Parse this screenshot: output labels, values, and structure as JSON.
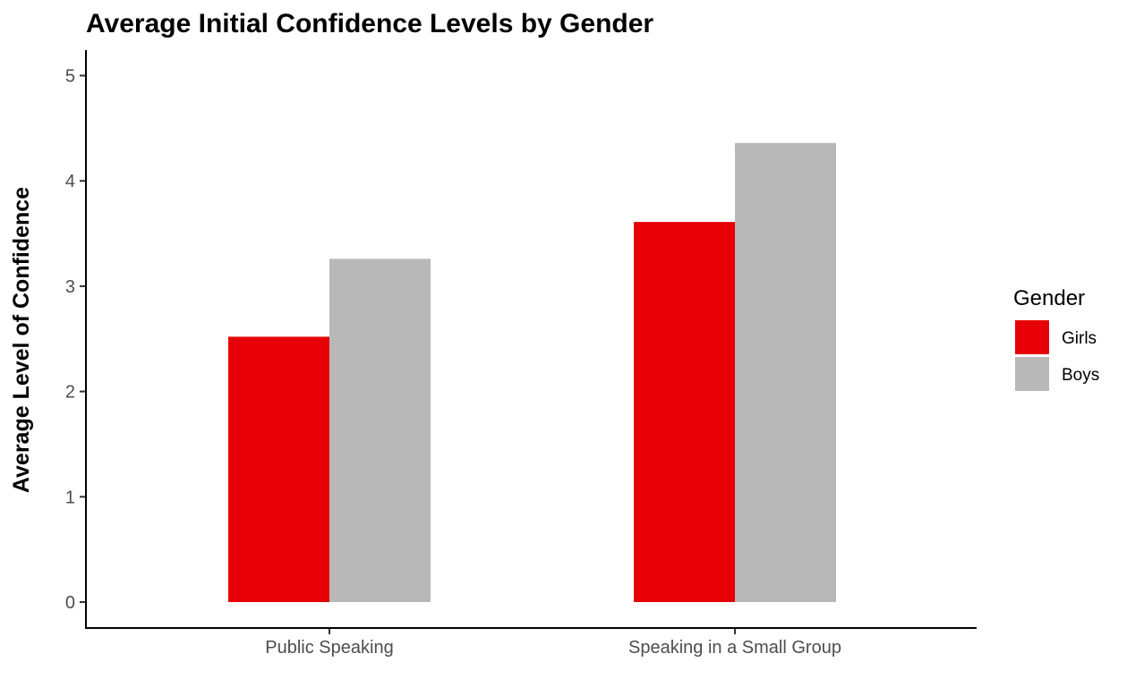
{
  "chart_data": {
    "type": "bar",
    "title": "Average Initial Confidence Levels by Gender",
    "xlabel": "",
    "ylabel": "Average Level of Confidence",
    "categories": [
      "Public Speaking",
      "Speaking in a Small Group"
    ],
    "series": [
      {
        "name": "Girls",
        "values": [
          2.52,
          3.61
        ],
        "color": "#e60005"
      },
      {
        "name": "Boys",
        "values": [
          3.26,
          4.36
        ],
        "color": "#b8b8b8"
      }
    ],
    "ylim": [
      0,
      5.25
    ],
    "yticks": [
      "0",
      "1",
      "2",
      "3",
      "4",
      "5"
    ],
    "legend": {
      "title": "Gender",
      "position": "right"
    },
    "grid": false
  }
}
